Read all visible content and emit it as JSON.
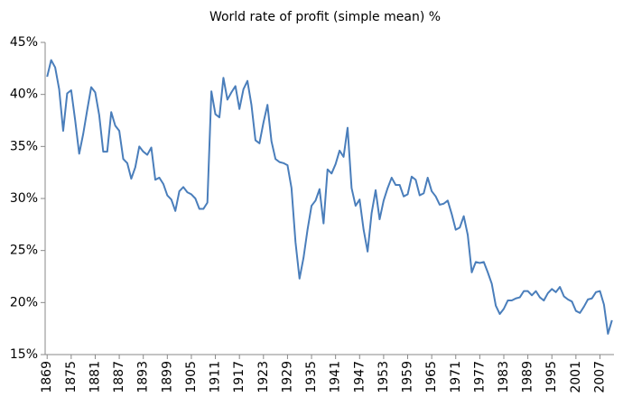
{
  "chart_data": {
    "type": "line",
    "title": "World rate of profit (simple mean) %",
    "x": [
      1869,
      1870,
      1871,
      1872,
      1873,
      1874,
      1875,
      1876,
      1877,
      1878,
      1879,
      1880,
      1881,
      1882,
      1883,
      1884,
      1885,
      1886,
      1887,
      1888,
      1889,
      1890,
      1891,
      1892,
      1893,
      1894,
      1895,
      1896,
      1897,
      1898,
      1899,
      1900,
      1901,
      1902,
      1903,
      1904,
      1905,
      1906,
      1907,
      1908,
      1909,
      1910,
      1911,
      1912,
      1913,
      1914,
      1915,
      1916,
      1917,
      1918,
      1919,
      1920,
      1921,
      1922,
      1923,
      1924,
      1925,
      1926,
      1927,
      1928,
      1929,
      1930,
      1931,
      1932,
      1933,
      1934,
      1935,
      1936,
      1937,
      1938,
      1939,
      1940,
      1941,
      1942,
      1943,
      1944,
      1945,
      1946,
      1947,
      1948,
      1949,
      1950,
      1951,
      1952,
      1953,
      1954,
      1955,
      1956,
      1957,
      1958,
      1959,
      1960,
      1961,
      1962,
      1963,
      1964,
      1965,
      1966,
      1967,
      1968,
      1969,
      1970,
      1971,
      1972,
      1973,
      1974,
      1975,
      1976,
      1977,
      1978,
      1979,
      1980,
      1981,
      1982,
      1983,
      1984,
      1985,
      1986,
      1987,
      1988,
      1989,
      1990,
      1991,
      1992,
      1993,
      1994,
      1995,
      1996,
      1997,
      1998,
      1999,
      2000,
      2001,
      2002,
      2003,
      2004,
      2005,
      2006,
      2007,
      2008,
      2009,
      2010
    ],
    "values": [
      41.7,
      43.3,
      42.6,
      40.5,
      36.5,
      40.1,
      40.4,
      37.5,
      34.3,
      36.2,
      38.5,
      40.7,
      40.2,
      38.0,
      34.5,
      34.5,
      38.3,
      37.0,
      36.5,
      33.8,
      33.4,
      31.9,
      33.0,
      35.0,
      34.5,
      34.2,
      34.9,
      31.8,
      32.0,
      31.4,
      30.3,
      29.9,
      28.8,
      30.7,
      31.1,
      30.6,
      30.4,
      30.0,
      29.0,
      29.0,
      29.6,
      40.3,
      38.1,
      37.8,
      41.6,
      39.5,
      40.2,
      40.8,
      38.6,
      40.5,
      41.3,
      39.0,
      35.6,
      35.3,
      37.3,
      39.0,
      35.5,
      33.8,
      33.5,
      33.4,
      33.2,
      31.0,
      25.8,
      22.3,
      24.3,
      27.0,
      29.3,
      29.8,
      30.9,
      27.6,
      32.8,
      32.4,
      33.3,
      34.6,
      34.0,
      36.8,
      31.0,
      29.3,
      29.9,
      27.0,
      24.9,
      28.6,
      30.8,
      28.0,
      29.8,
      31.0,
      32.0,
      31.3,
      31.3,
      30.2,
      30.4,
      32.1,
      31.8,
      30.3,
      30.5,
      32.0,
      30.7,
      30.2,
      29.4,
      29.5,
      29.8,
      28.5,
      27.0,
      27.2,
      28.3,
      26.5,
      22.9,
      23.9,
      23.8,
      23.9,
      22.9,
      21.8,
      19.7,
      18.9,
      19.4,
      20.2,
      20.2,
      20.4,
      20.5,
      21.1,
      21.1,
      20.7,
      21.1,
      20.5,
      20.2,
      20.9,
      21.3,
      21.0,
      21.5,
      20.6,
      20.3,
      20.1,
      19.2,
      19.0,
      19.6,
      20.3,
      20.4,
      21.0,
      21.1,
      19.8,
      17.0,
      18.3
    ],
    "color": "#4a7ebb",
    "xlim": [
      1868.5,
      2010.5
    ],
    "xticks": [
      1869,
      1875,
      1881,
      1887,
      1893,
      1899,
      1905,
      1911,
      1917,
      1923,
      1929,
      1935,
      1941,
      1947,
      1953,
      1959,
      1965,
      1971,
      1977,
      1983,
      1989,
      1995,
      2001,
      2007
    ],
    "ylim": [
      15,
      45
    ],
    "yticks": [
      {
        "value": 15,
        "label": "15%"
      },
      {
        "value": 20,
        "label": "20%"
      },
      {
        "value": 25,
        "label": "25%"
      },
      {
        "value": 30,
        "label": "30%"
      },
      {
        "value": 35,
        "label": "35%"
      },
      {
        "value": 40,
        "label": "40%"
      },
      {
        "value": 45,
        "label": "45%"
      }
    ],
    "grid": false
  }
}
